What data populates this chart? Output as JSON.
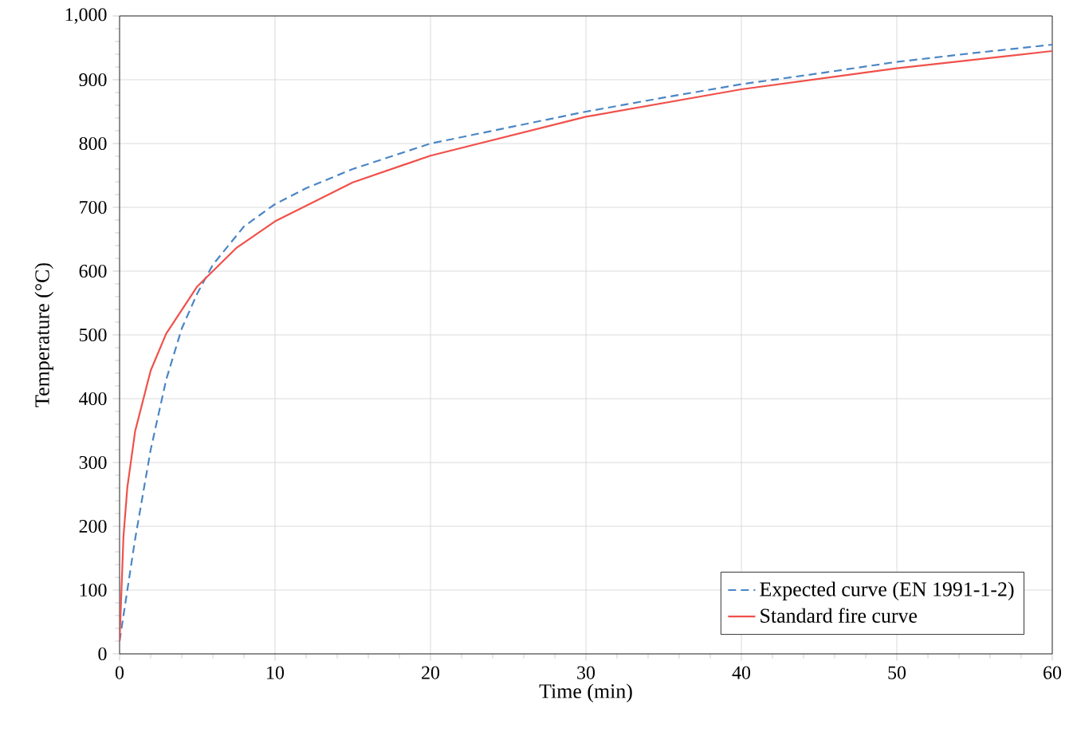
{
  "chart_data": {
    "type": "line",
    "xlabel": "Time (min)",
    "ylabel": "Temperature (°C)",
    "xlim": [
      0,
      60
    ],
    "ylim": [
      0,
      1000
    ],
    "xticks": [
      0,
      10,
      20,
      30,
      40,
      50,
      60
    ],
    "yticks": [
      0,
      100,
      200,
      300,
      400,
      500,
      600,
      700,
      800,
      900,
      {
        "value": 1000,
        "label": "1,000"
      }
    ],
    "grid": true,
    "legend": "bottom right",
    "marker": "none",
    "series": [
      {
        "name": "Expected curve (EN 1991-1-2)",
        "color": "#4a86c5",
        "line_style": "dashed",
        "x": [
          0,
          0.5,
          1,
          2,
          3,
          4,
          5,
          6,
          8,
          10,
          12,
          15,
          20,
          25,
          30,
          35,
          40,
          45,
          50,
          55,
          60
        ],
        "values": [
          20,
          100,
          180,
          320,
          430,
          510,
          565,
          610,
          670,
          705,
          730,
          760,
          800,
          825,
          850,
          872,
          893,
          910,
          928,
          942,
          955
        ]
      },
      {
        "name": "Standard fire curve",
        "color": "#f0504a",
        "line_style": "solid",
        "x": [
          0,
          0.25,
          0.5,
          1,
          2,
          3,
          5,
          7.5,
          10,
          15,
          20,
          30,
          40,
          50,
          60
        ],
        "values": [
          20,
          184,
          261,
          349,
          444,
          502,
          576,
          636,
          678,
          739,
          781,
          842,
          885,
          918,
          945
        ]
      }
    ]
  }
}
